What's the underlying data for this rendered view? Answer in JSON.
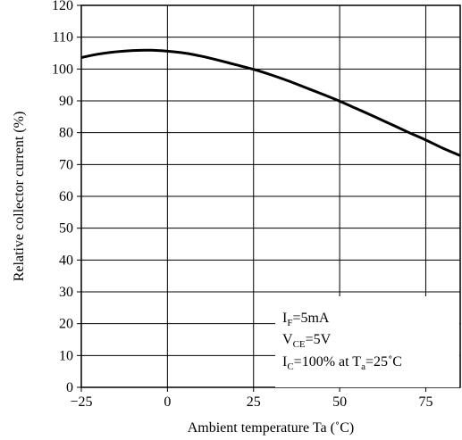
{
  "chart_data": {
    "type": "line",
    "xlabel": "Ambient temperature Ta (˚C)",
    "ylabel": "Relative collector current (%)",
    "xlim": [
      -25,
      85
    ],
    "ylim": [
      0,
      120
    ],
    "xticks": [
      -25,
      0,
      25,
      50,
      75
    ],
    "yticks": [
      0,
      10,
      20,
      30,
      40,
      50,
      60,
      70,
      80,
      90,
      100,
      110,
      120
    ],
    "grid": true,
    "series": [
      {
        "x": [
          -25,
          -20,
          -15,
          -10,
          -5,
          0,
          5,
          10,
          15,
          20,
          25,
          30,
          35,
          40,
          45,
          50,
          55,
          60,
          65,
          70,
          75,
          80,
          85
        ],
        "y": [
          103.6,
          104.7,
          105.4,
          105.8,
          105.9,
          105.6,
          105.0,
          104.0,
          102.7,
          101.3,
          99.9,
          98.2,
          96.3,
          94.2,
          92.1,
          89.9,
          87.5,
          85.1,
          82.6,
          80.1,
          77.7,
          75.1,
          72.8
        ]
      }
    ],
    "annotations": {
      "line1": {
        "main": "I",
        "sub": "F",
        "rest": "=5mA"
      },
      "line2": {
        "main": "V",
        "sub": "CE",
        "rest": "=5V"
      },
      "line3": {
        "main": "I",
        "sub": "C",
        "mid": "=100% at T",
        "sub2": "a",
        "rest": "=25˚C"
      }
    }
  }
}
